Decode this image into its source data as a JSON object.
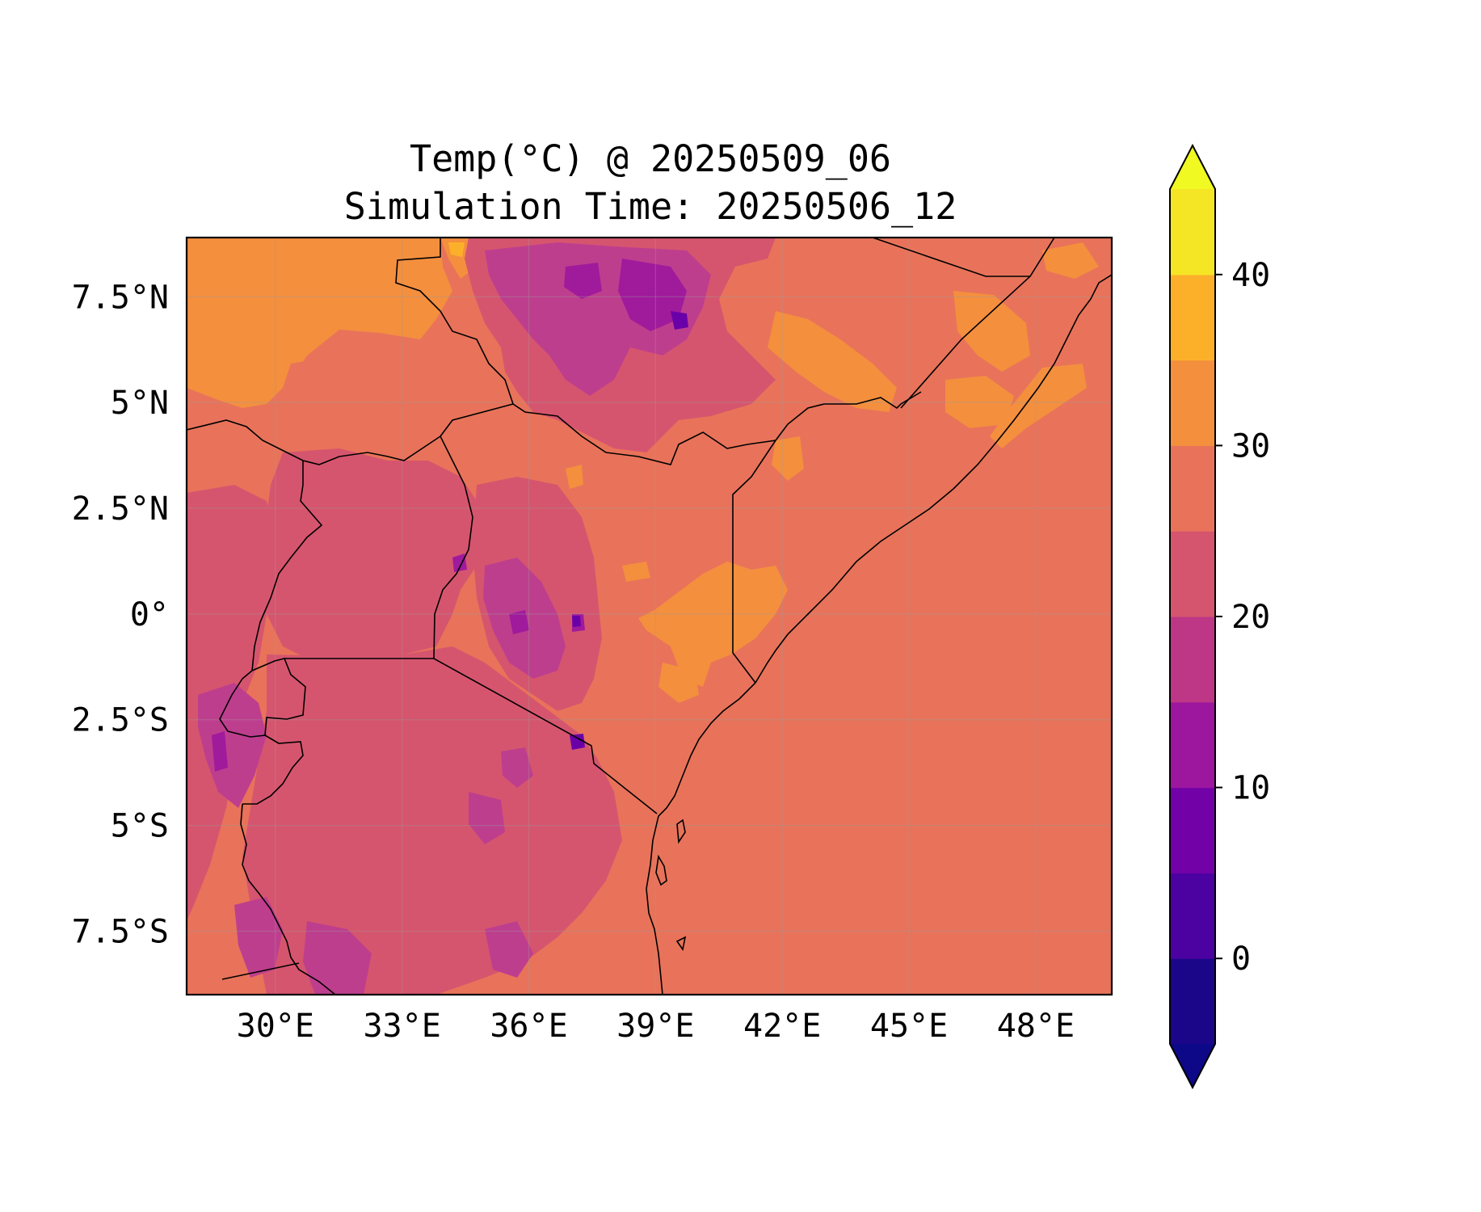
{
  "title": {
    "line1": "Temp(°C) @ 20250509_06",
    "line2": "Simulation Time: 20250506_12"
  },
  "map": {
    "lon_range": [
      27.9,
      49.8
    ],
    "lat_range": [
      -9.0,
      8.9
    ],
    "x_ticks": [
      {
        "value": 30,
        "label": "30°E"
      },
      {
        "value": 33,
        "label": "33°E"
      },
      {
        "value": 36,
        "label": "36°E"
      },
      {
        "value": 39,
        "label": "39°E"
      },
      {
        "value": 42,
        "label": "42°E"
      },
      {
        "value": 45,
        "label": "45°E"
      },
      {
        "value": 48,
        "label": "48°E"
      }
    ],
    "y_ticks": [
      {
        "value": 7.5,
        "label": "7.5°N"
      },
      {
        "value": 5,
        "label": "5°N"
      },
      {
        "value": 2.5,
        "label": "2.5°N"
      },
      {
        "value": 0,
        "label": "0°"
      },
      {
        "value": -2.5,
        "label": "2.5°S"
      },
      {
        "value": -5,
        "label": "5°S"
      },
      {
        "value": -7.5,
        "label": "7.5°S"
      }
    ],
    "gridlines": true,
    "colors": {
      "band_25_30": "#e8735a",
      "band_30_35": "#f48f3e",
      "band_35_40": "#fcb02a",
      "band_20_25": "#d6556e",
      "band_15_20": "#be3e8e",
      "band_10_15": "#a01a9c",
      "band_5_10": "#6a00a8"
    }
  },
  "colorbar": {
    "levels": [
      -5,
      0,
      5,
      10,
      15,
      20,
      25,
      30,
      35,
      40,
      45
    ],
    "colors": [
      "#1b0689",
      "#4b02a1",
      "#7201a8",
      "#9c179e",
      "#bd3786",
      "#d5546e",
      "#e8735a",
      "#f48f3e",
      "#fcb02a",
      "#f5e625"
    ],
    "under_color": "#0d0887",
    "over_color": "#f0f921",
    "ticks": [
      {
        "value": 0,
        "label": "0"
      },
      {
        "value": 10,
        "label": "10"
      },
      {
        "value": 20,
        "label": "20"
      },
      {
        "value": 30,
        "label": "30"
      },
      {
        "value": 40,
        "label": "40"
      }
    ]
  }
}
